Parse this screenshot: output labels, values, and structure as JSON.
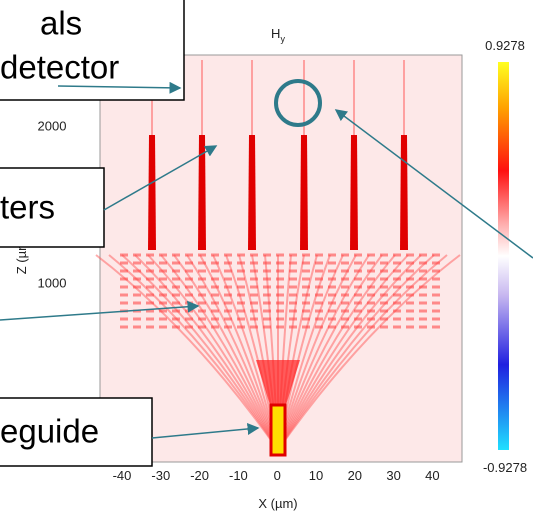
{
  "figure": {
    "title": {
      "main": "H",
      "sub": "y"
    },
    "x_axis": {
      "label": "X (µm)",
      "ticks": [
        "-40",
        "-30",
        "-20",
        "-10",
        "0",
        "10",
        "20",
        "30",
        "40"
      ]
    },
    "y_axis": {
      "label": "Z (µm)",
      "ticks": [
        "1000",
        "2000"
      ]
    },
    "colorbar": {
      "max_label": "0.9278",
      "min_label": "-0.9278"
    }
  },
  "callouts": [
    {
      "lines": [
        "als",
        "detector"
      ]
    },
    {
      "lines": [
        "ters"
      ]
    },
    {
      "lines": [
        "eguide"
      ]
    }
  ]
}
